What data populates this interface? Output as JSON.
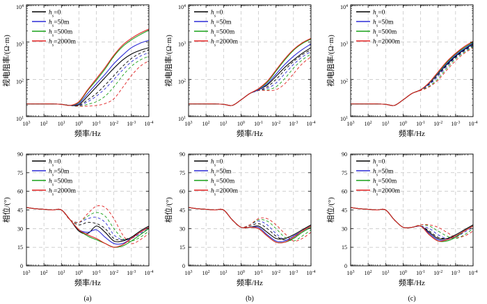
{
  "chart_data": {
    "type": "line",
    "layout": "2 rows x 3 columns (top: apparent resistivity, bottom: phase)",
    "panel_labels": [
      "(a)",
      "(b)",
      "(c)"
    ],
    "x_axis": {
      "label": "频率/Hz",
      "scale": "log",
      "direction": "decreasing left to right",
      "range_exponents": [
        3,
        -4
      ],
      "tick_labels": [
        {
          "base": "10",
          "exp": "3"
        },
        {
          "base": "10",
          "exp": "2"
        },
        {
          "base": "10",
          "exp": "1"
        },
        {
          "base": "10",
          "exp": "0"
        },
        {
          "base": "10",
          "exp": "-1"
        },
        {
          "base": "10",
          "exp": "-2"
        },
        {
          "base": "10",
          "exp": "-3"
        },
        {
          "base": "10",
          "exp": "-4"
        }
      ]
    },
    "resistivity_axis": {
      "label": "视电阻率/(Ω·m)",
      "scale": "log",
      "range_exponents": [
        1,
        4
      ],
      "tick_labels": [
        {
          "base": "10",
          "exp": "4"
        },
        {
          "base": "10",
          "exp": "3"
        },
        {
          "base": "10",
          "exp": "2"
        },
        {
          "base": "10",
          "exp": "1"
        }
      ]
    },
    "phase_axis": {
      "label": "相位/(°)",
      "range": [
        0,
        90
      ],
      "ticks": [
        0,
        15,
        30,
        45,
        60,
        75,
        90
      ]
    },
    "legend": [
      {
        "var": "h",
        "sub": "s",
        "value": "=0",
        "color": "#000000",
        "dash": "solid"
      },
      {
        "var": "h",
        "sub": "s",
        "value": "=50m",
        "color": "#2b2bd6",
        "dash": "solid"
      },
      {
        "var": "h",
        "sub": "s",
        "value": "=500m",
        "color": "#19a019",
        "dash": "solid"
      },
      {
        "var": "h",
        "sub": "s",
        "value": "=2000m",
        "color": "#e02020",
        "dash": "solid"
      }
    ],
    "line_styles": [
      {
        "color": "#000000",
        "dash": "solid"
      },
      {
        "color": "#2b2bd6",
        "dash": "solid"
      },
      {
        "color": "#19a019",
        "dash": "solid"
      },
      {
        "color": "#e02020",
        "dash": "solid"
      },
      {
        "color": "#000000",
        "dash": "4,3"
      },
      {
        "color": "#2b2bd6",
        "dash": "4,3"
      },
      {
        "color": "#19a019",
        "dash": "4,3"
      },
      {
        "color": "#e02020",
        "dash": "4,3"
      }
    ],
    "x_sample_log_freq": [
      3,
      2.5,
      2,
      1.5,
      1,
      0.5,
      0,
      -0.5,
      -1,
      -1.5,
      -2,
      -2.5,
      -3,
      -3.5,
      -4
    ],
    "panels": [
      {
        "label": "(a)",
        "resistivity_log10": [
          [
            1.34,
            1.34,
            1.34,
            1.34,
            1.33,
            1.3,
            1.32,
            1.55,
            1.8,
            2.05,
            2.3,
            2.52,
            2.68,
            2.78,
            2.85
          ],
          [
            1.34,
            1.34,
            1.34,
            1.34,
            1.33,
            1.3,
            1.35,
            1.62,
            1.88,
            2.14,
            2.42,
            2.65,
            2.85,
            2.97,
            3.05
          ],
          [
            1.34,
            1.34,
            1.34,
            1.34,
            1.33,
            1.3,
            1.38,
            1.7,
            1.98,
            2.28,
            2.62,
            2.88,
            3.06,
            3.2,
            3.32
          ],
          [
            1.34,
            1.34,
            1.34,
            1.34,
            1.33,
            1.3,
            1.4,
            1.72,
            2.02,
            2.32,
            2.65,
            2.92,
            3.1,
            3.24,
            3.35
          ],
          [
            1.34,
            1.34,
            1.34,
            1.34,
            1.33,
            1.3,
            1.3,
            1.45,
            1.62,
            1.85,
            2.1,
            2.35,
            2.56,
            2.7,
            2.8
          ],
          [
            1.34,
            1.34,
            1.34,
            1.34,
            1.33,
            1.3,
            1.29,
            1.4,
            1.55,
            1.75,
            2.0,
            2.25,
            2.47,
            2.62,
            2.72
          ],
          [
            1.34,
            1.34,
            1.34,
            1.34,
            1.33,
            1.3,
            1.28,
            1.33,
            1.4,
            1.55,
            1.8,
            2.1,
            2.35,
            2.52,
            2.62
          ],
          [
            1.34,
            1.34,
            1.34,
            1.34,
            1.33,
            1.3,
            1.28,
            1.28,
            1.3,
            1.35,
            1.48,
            1.78,
            2.1,
            2.35,
            2.5
          ]
        ],
        "phase_deg": [
          [
            47,
            46,
            45.5,
            45,
            45,
            37,
            28,
            26,
            32,
            27,
            20,
            20,
            23,
            28,
            32
          ],
          [
            47,
            46,
            45.5,
            45,
            45,
            37,
            29,
            27,
            29,
            23,
            18,
            18,
            22,
            27,
            31
          ],
          [
            47,
            46,
            45.5,
            45,
            45,
            37,
            29,
            24,
            21,
            18,
            15,
            16,
            20,
            25,
            30
          ],
          [
            47,
            46,
            45.5,
            45,
            45,
            37,
            29,
            25,
            22,
            18,
            15,
            17,
            22,
            27,
            31
          ],
          [
            47,
            46,
            45.5,
            45,
            45,
            37,
            33,
            35,
            34,
            30,
            22,
            21,
            23,
            27,
            31
          ],
          [
            47,
            46,
            45.5,
            45,
            45,
            37,
            35,
            38,
            39,
            35,
            25,
            21,
            22,
            26,
            30
          ],
          [
            47,
            46,
            45.5,
            45,
            45,
            37,
            35,
            40,
            43,
            40,
            30,
            22,
            20,
            23,
            28
          ],
          [
            47,
            46,
            45.5,
            45,
            45,
            37,
            35,
            42,
            48,
            47,
            38,
            25,
            18,
            21,
            26
          ]
        ]
      },
      {
        "label": "(b)",
        "resistivity_log10": [
          [
            1.34,
            1.34,
            1.34,
            1.34,
            1.33,
            1.3,
            1.45,
            1.62,
            1.72,
            1.85,
            2.08,
            2.32,
            2.52,
            2.7,
            2.85
          ],
          [
            1.34,
            1.34,
            1.34,
            1.34,
            1.33,
            1.3,
            1.45,
            1.62,
            1.72,
            1.88,
            2.14,
            2.4,
            2.62,
            2.8,
            2.95
          ],
          [
            1.34,
            1.34,
            1.34,
            1.34,
            1.33,
            1.3,
            1.45,
            1.62,
            1.74,
            1.92,
            2.22,
            2.52,
            2.78,
            2.96,
            3.08
          ],
          [
            1.34,
            1.34,
            1.34,
            1.34,
            1.33,
            1.3,
            1.45,
            1.62,
            1.75,
            1.95,
            2.25,
            2.55,
            2.8,
            2.98,
            3.1
          ],
          [
            1.34,
            1.34,
            1.34,
            1.34,
            1.33,
            1.3,
            1.45,
            1.62,
            1.7,
            1.8,
            2.0,
            2.25,
            2.48,
            2.66,
            2.8
          ],
          [
            1.34,
            1.34,
            1.34,
            1.34,
            1.33,
            1.3,
            1.45,
            1.62,
            1.7,
            1.76,
            1.9,
            2.15,
            2.4,
            2.6,
            2.75
          ],
          [
            1.34,
            1.34,
            1.34,
            1.34,
            1.33,
            1.3,
            1.45,
            1.62,
            1.7,
            1.72,
            1.8,
            2.02,
            2.3,
            2.52,
            2.68
          ],
          [
            1.34,
            1.34,
            1.34,
            1.34,
            1.33,
            1.3,
            1.45,
            1.62,
            1.7,
            1.7,
            1.72,
            1.88,
            2.15,
            2.42,
            2.6
          ]
        ],
        "phase_deg": [
          [
            47,
            46,
            45.5,
            45,
            45,
            37,
            31,
            31,
            32,
            27,
            22,
            22,
            25,
            29,
            33
          ],
          [
            47,
            46,
            45.5,
            45,
            45,
            37,
            31,
            31,
            31,
            25,
            20,
            20,
            24,
            28,
            32
          ],
          [
            47,
            46,
            45.5,
            45,
            45,
            37,
            31,
            31,
            30,
            24,
            19,
            19,
            22,
            27,
            31
          ],
          [
            47,
            46,
            45.5,
            45,
            45,
            37,
            31,
            31,
            30,
            24,
            19,
            19,
            23,
            28,
            32
          ],
          [
            47,
            46,
            45.5,
            45,
            45,
            37,
            31,
            32,
            34,
            30,
            24,
            21,
            23,
            28,
            32
          ],
          [
            47,
            46,
            45.5,
            45,
            45,
            37,
            31,
            33,
            36,
            33,
            26,
            21,
            22,
            27,
            31
          ],
          [
            47,
            46,
            45.5,
            45,
            45,
            37,
            31,
            33,
            37,
            36,
            30,
            23,
            20,
            24,
            29
          ],
          [
            47,
            46,
            45.5,
            45,
            45,
            37,
            31,
            33,
            38,
            38,
            33,
            26,
            20,
            22,
            27
          ]
        ]
      },
      {
        "label": "(c)",
        "resistivity_log10": [
          [
            1.34,
            1.34,
            1.34,
            1.34,
            1.33,
            1.3,
            1.45,
            1.62,
            1.72,
            1.9,
            2.15,
            2.4,
            2.62,
            2.8,
            2.95
          ],
          [
            1.34,
            1.34,
            1.34,
            1.34,
            1.33,
            1.3,
            1.45,
            1.62,
            1.72,
            1.9,
            2.16,
            2.42,
            2.65,
            2.82,
            2.98
          ],
          [
            1.34,
            1.34,
            1.34,
            1.34,
            1.33,
            1.3,
            1.45,
            1.62,
            1.72,
            1.91,
            2.18,
            2.45,
            2.68,
            2.85,
            3.0
          ],
          [
            1.34,
            1.34,
            1.34,
            1.34,
            1.33,
            1.3,
            1.45,
            1.62,
            1.72,
            1.92,
            2.2,
            2.48,
            2.7,
            2.88,
            3.02
          ],
          [
            1.34,
            1.34,
            1.34,
            1.34,
            1.33,
            1.3,
            1.45,
            1.62,
            1.71,
            1.88,
            2.12,
            2.38,
            2.6,
            2.78,
            2.92
          ],
          [
            1.34,
            1.34,
            1.34,
            1.34,
            1.33,
            1.3,
            1.45,
            1.62,
            1.71,
            1.86,
            2.08,
            2.35,
            2.58,
            2.76,
            2.9
          ],
          [
            1.34,
            1.34,
            1.34,
            1.34,
            1.33,
            1.3,
            1.45,
            1.62,
            1.71,
            1.82,
            2.02,
            2.3,
            2.55,
            2.73,
            2.88
          ],
          [
            1.34,
            1.34,
            1.34,
            1.34,
            1.33,
            1.3,
            1.45,
            1.62,
            1.7,
            1.8,
            1.98,
            2.25,
            2.5,
            2.7,
            2.85
          ]
        ],
        "phase_deg": [
          [
            47,
            46,
            45.5,
            45,
            45,
            37,
            31,
            31,
            32,
            27,
            22,
            22,
            25,
            29,
            33
          ],
          [
            47,
            46,
            45.5,
            45,
            45,
            37,
            31,
            31,
            32,
            26,
            21,
            21,
            24,
            28,
            32
          ],
          [
            47,
            46,
            45.5,
            45,
            45,
            37,
            31,
            31,
            32,
            25,
            20,
            20,
            23,
            28,
            32
          ],
          [
            47,
            46,
            45.5,
            45,
            45,
            37,
            31,
            31,
            32,
            25,
            20,
            21,
            24,
            28,
            32
          ],
          [
            47,
            46,
            45.5,
            45,
            45,
            37,
            31,
            31,
            32,
            28,
            23,
            22,
            24,
            28,
            32
          ],
          [
            47,
            46,
            45.5,
            45,
            45,
            37,
            31,
            31,
            32,
            30,
            25,
            22,
            23,
            27,
            31
          ],
          [
            47,
            46,
            45.5,
            45,
            45,
            37,
            31,
            31,
            33,
            32,
            28,
            24,
            22,
            25,
            30
          ],
          [
            47,
            46,
            45.5,
            45,
            45,
            37,
            31,
            31,
            33,
            33,
            31,
            27,
            23,
            24,
            28
          ]
        ]
      }
    ]
  }
}
